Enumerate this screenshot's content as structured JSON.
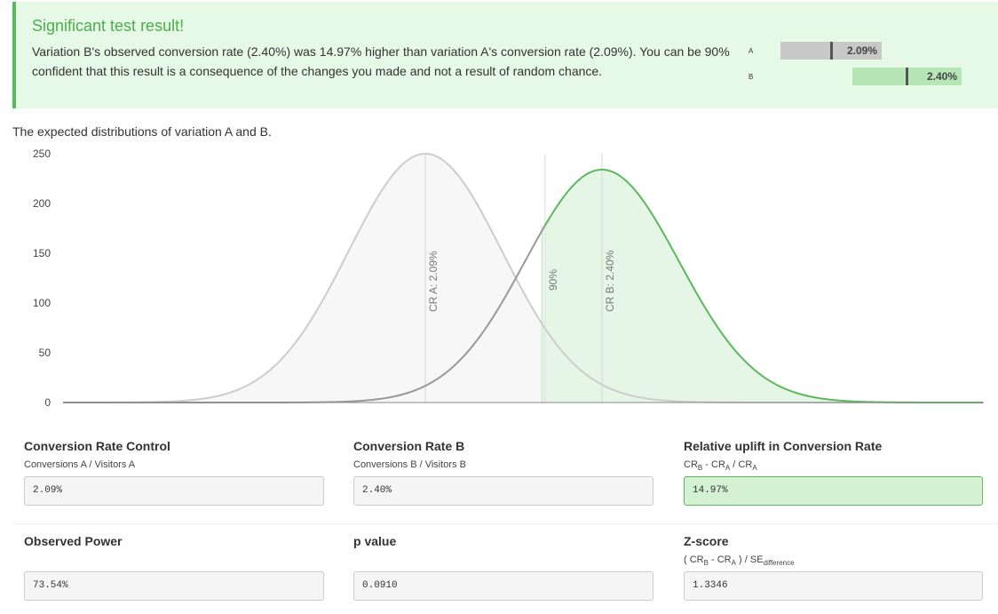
{
  "banner": {
    "title": "Significant test result!",
    "text": "Variation B's observed conversion rate (2.40%) was 14.97% higher than variation A's conversion rate (2.09%). You can be 90% confident that this result is a consequence of the changes you made and not a result of random chance.",
    "bars": [
      {
        "label": "A",
        "value_text": "2.09%",
        "value": 2.09
      },
      {
        "label": "B",
        "value_text": "2.40%",
        "value": 2.4
      }
    ]
  },
  "distribution": {
    "caption": "The expected distributions of variation A and B."
  },
  "chart_data": {
    "type": "area",
    "y_ticks": [
      0,
      50,
      100,
      150,
      200,
      250
    ],
    "ylim": [
      0,
      250
    ],
    "series": [
      {
        "name": "A",
        "mean": 2.09,
        "peak": 250,
        "color": "#cccccc"
      },
      {
        "name": "B",
        "mean": 2.4,
        "peak": 234,
        "color": "#5cb85c"
      }
    ],
    "annotations": [
      {
        "text": "CR A: 2.09%",
        "x": 2.09
      },
      {
        "text": "90%",
        "x": 2.3
      },
      {
        "text": "CR B: 2.40%",
        "x": 2.4
      }
    ],
    "confidence_level": "90%"
  },
  "metrics": {
    "control": {
      "title": "Conversion Rate Control",
      "subtitle": "Conversions A / Visitors A",
      "value": "2.09%"
    },
    "variant": {
      "title": "Conversion Rate B",
      "subtitle": "Conversions B / Visitors B",
      "value": "2.40%"
    },
    "uplift": {
      "title": "Relative uplift in Conversion Rate",
      "value": "14.97%"
    },
    "power": {
      "title": "Observed Power",
      "value": "73.54%"
    },
    "pvalue": {
      "title": "p value",
      "value": "0.0910"
    },
    "zscore": {
      "title": "Z-score",
      "value": "1.3346"
    }
  }
}
